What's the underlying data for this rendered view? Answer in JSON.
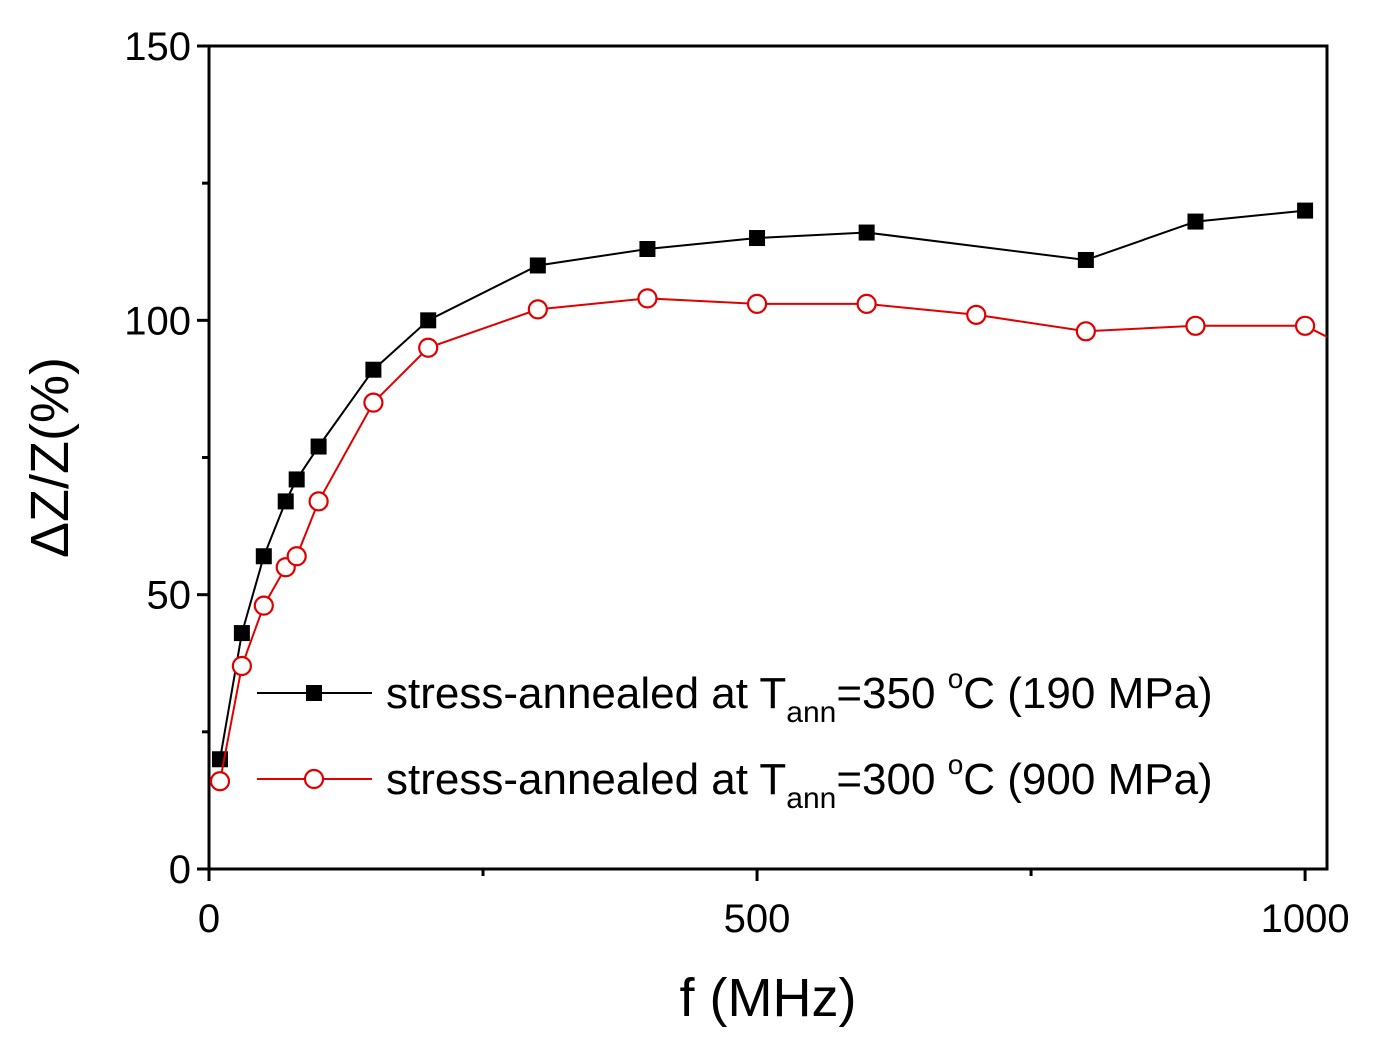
{
  "chart_data": {
    "type": "line",
    "title": "",
    "xlabel": "f (MHz)",
    "ylabel": "ΔZ/Z(%)",
    "xlim": [
      0,
      1020
    ],
    "ylim": [
      0,
      150
    ],
    "x_ticks": [
      0,
      500,
      1000
    ],
    "y_ticks": [
      0,
      50,
      100,
      150
    ],
    "x_minor_ticks": [
      250,
      750
    ],
    "y_minor_ticks": [
      25,
      75,
      125
    ],
    "grid": false,
    "legend_position": "lower-right",
    "series": [
      {
        "name": "stress-annealed at T_ann=350 °C (190 MPa)",
        "legend": {
          "pre": "stress-annealed at T",
          "sub": "ann",
          "mid": "=350 ",
          "sup": "o",
          "post": "C (190 MPa)"
        },
        "color": "#000000",
        "marker": "filled-square",
        "x": [
          10,
          30,
          50,
          70,
          80,
          100,
          150,
          200,
          300,
          400,
          500,
          600,
          800,
          900,
          1000
        ],
        "y": [
          20,
          43,
          57,
          67,
          71,
          77,
          91,
          100,
          110,
          113,
          115,
          116,
          111,
          118,
          120
        ]
      },
      {
        "name": "stress-annealed at T_ann=300 °C (900 MPa)",
        "legend": {
          "pre": "stress-annealed at T",
          "sub": "ann",
          "mid": "=300 ",
          "sup": "o",
          "post": "C (900 MPa)"
        },
        "color": "#e00000",
        "marker": "open-circle",
        "x": [
          10,
          30,
          50,
          70,
          80,
          100,
          150,
          200,
          300,
          400,
          500,
          600,
          700,
          800,
          900,
          1000,
          1020
        ],
        "y": [
          16,
          37,
          48,
          55,
          57,
          67,
          85,
          95,
          102,
          104,
          103,
          103,
          101,
          98,
          99,
          99,
          97
        ],
        "marker_skip_last": true
      }
    ]
  }
}
